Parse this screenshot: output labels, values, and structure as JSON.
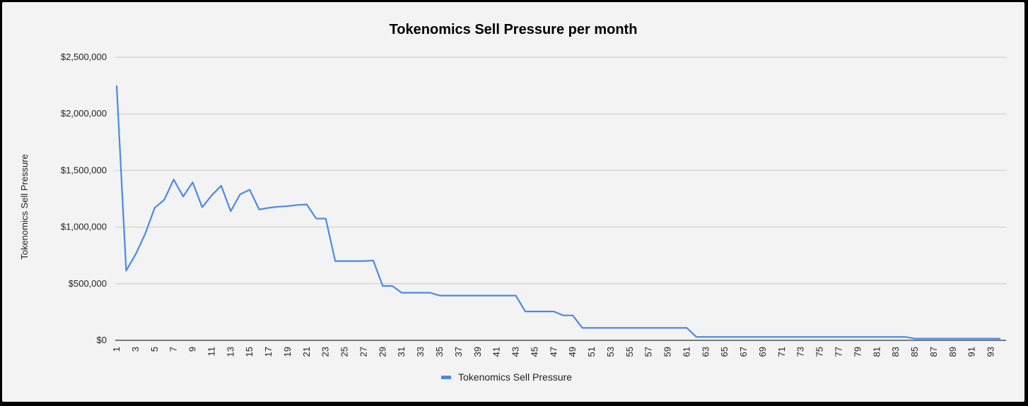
{
  "chart_data": {
    "type": "line",
    "title": "Tokenomics Sell Pressure per month",
    "xlabel": "",
    "ylabel": "Tokenomics Sell Pressure",
    "ylim": [
      0,
      2500000
    ],
    "yticks": [
      "$0",
      "$500,000",
      "$1,000,000",
      "$1,500,000",
      "$2,000,000",
      "$2,500,000"
    ],
    "ytick_values": [
      0,
      500000,
      1000000,
      1500000,
      2000000,
      2500000
    ],
    "x": [
      1,
      2,
      3,
      4,
      5,
      6,
      7,
      8,
      9,
      10,
      11,
      12,
      13,
      14,
      15,
      16,
      17,
      18,
      19,
      20,
      21,
      22,
      23,
      24,
      25,
      26,
      27,
      28,
      29,
      30,
      31,
      32,
      33,
      34,
      35,
      36,
      37,
      38,
      39,
      40,
      41,
      42,
      43,
      44,
      45,
      46,
      47,
      48,
      49,
      50,
      51,
      52,
      53,
      54,
      55,
      56,
      57,
      58,
      59,
      60,
      61,
      62,
      63,
      64,
      65,
      66,
      67,
      68,
      69,
      70,
      71,
      72,
      73,
      74,
      75,
      76,
      77,
      78,
      79,
      80,
      81,
      82,
      83,
      84,
      85,
      86,
      87,
      88,
      89,
      90,
      91,
      92,
      93,
      94
    ],
    "xtick_labels": [
      "1",
      "3",
      "5",
      "7",
      "9",
      "11",
      "13",
      "15",
      "17",
      "19",
      "21",
      "23",
      "25",
      "27",
      "29",
      "31",
      "33",
      "35",
      "37",
      "39",
      "41",
      "43",
      "45",
      "47",
      "49",
      "51",
      "53",
      "55",
      "57",
      "59",
      "61",
      "63",
      "65",
      "67",
      "69",
      "71",
      "73",
      "75",
      "77",
      "79",
      "81",
      "83",
      "85",
      "87",
      "89",
      "91",
      "93"
    ],
    "grid": true,
    "legend_position": "bottom",
    "series": [
      {
        "name": "Tokenomics Sell Pressure",
        "color": "#4a89e8",
        "values": [
          2250000,
          615000,
          760000,
          940000,
          1170000,
          1240000,
          1420000,
          1270000,
          1395000,
          1175000,
          1280000,
          1365000,
          1140000,
          1290000,
          1330000,
          1155000,
          1170000,
          1180000,
          1185000,
          1195000,
          1200000,
          1075000,
          1075000,
          700000,
          700000,
          700000,
          700000,
          705000,
          480000,
          480000,
          420000,
          420000,
          420000,
          420000,
          395000,
          395000,
          395000,
          395000,
          395000,
          395000,
          395000,
          395000,
          395000,
          255000,
          255000,
          255000,
          255000,
          220000,
          220000,
          110000,
          110000,
          110000,
          110000,
          110000,
          110000,
          110000,
          110000,
          110000,
          110000,
          110000,
          110000,
          30000,
          30000,
          30000,
          30000,
          30000,
          30000,
          30000,
          30000,
          30000,
          30000,
          30000,
          30000,
          30000,
          30000,
          30000,
          30000,
          30000,
          30000,
          30000,
          30000,
          30000,
          30000,
          30000,
          15000,
          15000,
          15000,
          15000,
          15000,
          15000,
          15000,
          15000,
          15000,
          15000
        ]
      }
    ]
  }
}
